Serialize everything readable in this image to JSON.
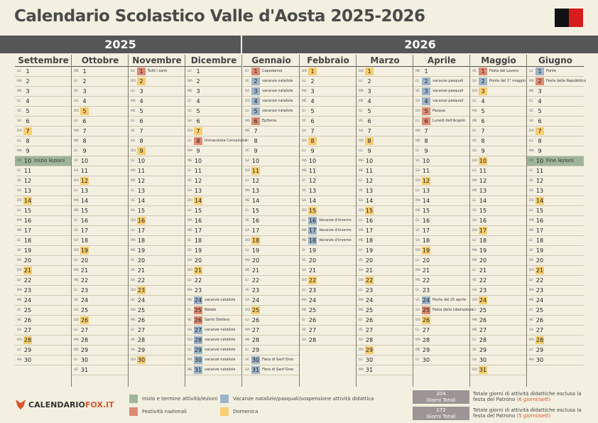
{
  "title": "Calendario Scolastico Valle d'Aosta 2025-2026",
  "years": [
    "2025",
    "2026"
  ],
  "colors": {
    "sun": "#f6cd6f",
    "hol": "#dd8a73",
    "vac": "#9cb4c9",
    "startend": "#9db59b"
  },
  "months": [
    {
      "name": "Settembre",
      "start": 1,
      "days": 30,
      "events": {
        "10": {
          "type": "startend",
          "label": "Inizio lezioni"
        }
      }
    },
    {
      "name": "Ottobre",
      "start": 3,
      "days": 31,
      "events": {}
    },
    {
      "name": "Novembre",
      "start": 6,
      "days": 30,
      "events": {
        "1": {
          "type": "hol",
          "label": "Tutti i santi"
        }
      }
    },
    {
      "name": "Dicembre",
      "start": 1,
      "days": 31,
      "events": {
        "8": {
          "type": "hol",
          "label": "Immacolata Concezione"
        },
        "24": {
          "type": "vac",
          "label": "vacanze natalizie"
        },
        "25": {
          "type": "hol",
          "label": "Natale"
        },
        "26": {
          "type": "hol",
          "label": "Santo Stefano"
        },
        "27": {
          "type": "vac",
          "label": "vacanze natalizie"
        },
        "28": {
          "type": "vac",
          "label": "vacanze natalizie"
        },
        "29": {
          "type": "vac",
          "label": "vacanze natalizie"
        },
        "30": {
          "type": "vac",
          "label": "vacanze natalizie"
        },
        "31": {
          "type": "vac",
          "label": "vacanze natalizie"
        }
      }
    },
    {
      "name": "Gennaio",
      "start": 4,
      "days": 31,
      "events": {
        "1": {
          "type": "hol",
          "label": "Capodanno"
        },
        "2": {
          "type": "vac",
          "label": "vacanze natalizie"
        },
        "3": {
          "type": "vac",
          "label": "vacanze natalizie"
        },
        "4": {
          "type": "vac",
          "label": "vacanze natalizie"
        },
        "5": {
          "type": "vac",
          "label": "vacanze natalizie"
        },
        "6": {
          "type": "hol",
          "label": "Epifania"
        },
        "30": {
          "type": "vac",
          "label": "Fiera di Sant'Orso"
        },
        "31": {
          "type": "vac",
          "label": "Fiera di Sant'Orso"
        }
      }
    },
    {
      "name": "Febbraio",
      "start": 0,
      "days": 28,
      "events": {
        "16": {
          "type": "vac",
          "label": "Vacanze d'inverno"
        },
        "17": {
          "type": "vac",
          "label": "Vacanze d'inverno"
        },
        "18": {
          "type": "vac",
          "label": "Vacanze d'inverno"
        }
      }
    },
    {
      "name": "Marzo",
      "start": 0,
      "days": 31,
      "events": {}
    },
    {
      "name": "Aprile",
      "start": 3,
      "days": 30,
      "events": {
        "2": {
          "type": "vac",
          "label": "vacanze pasquali"
        },
        "3": {
          "type": "vac",
          "label": "vacanze pasquali"
        },
        "4": {
          "type": "vac",
          "label": "vacanze pasquali"
        },
        "5": {
          "type": "hol",
          "label": "Pasqua"
        },
        "6": {
          "type": "hol",
          "label": "Lunedì dell'Angelo"
        },
        "24": {
          "type": "vac",
          "label": "Ponte del 25 aprile"
        },
        "25": {
          "type": "hol",
          "label": "Festa della Liberazione"
        }
      }
    },
    {
      "name": "Maggio",
      "start": 5,
      "days": 31,
      "events": {
        "1": {
          "type": "hol",
          "label": "Festa dei Lavoro"
        },
        "2": {
          "type": "vac",
          "label": "Ponte del 1° maggio"
        }
      }
    },
    {
      "name": "Giugno",
      "start": 1,
      "days": 30,
      "events": {
        "1": {
          "type": "vac",
          "label": "Ponte"
        },
        "2": {
          "type": "hol",
          "label": "Festa della Repubblica"
        },
        "10": {
          "type": "startend",
          "label": "Fine lezioni"
        }
      }
    }
  ],
  "weekdays": [
    "DO",
    "LU",
    "MA",
    "ME",
    "GI",
    "VE",
    "SA"
  ],
  "logo": {
    "part1": "CALENDARIO",
    "part2": "FOX.IT"
  },
  "legend": {
    "startend": "Inizio e termine attività/lezioni",
    "vac": "Vacanze natalizie/pasquali/sospensione attività didattica",
    "hol": "Festività nazionali",
    "sun": "Domenica"
  },
  "totals": [
    {
      "count": "204",
      "unit": "Giorni Totali",
      "text": "Totale giorni di attività didattiche esclusa la festa del Patrono",
      "note": "(6 giorni/sett)"
    },
    {
      "count": "172",
      "unit": "Giorni Totali",
      "text": "Totale giorni di attività didattiche esclusa la festa del Patrono",
      "note": "(5 giorni/sett)"
    }
  ]
}
